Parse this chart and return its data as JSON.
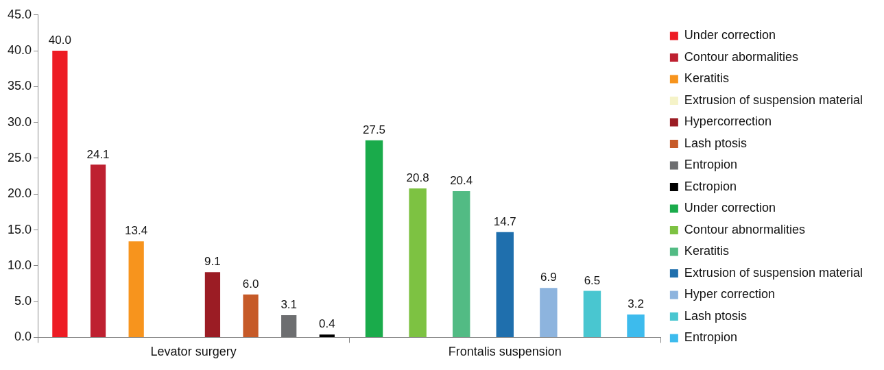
{
  "chart_data": {
    "type": "bar",
    "categories": [
      "Levator surgery",
      "Frontalis suspension"
    ],
    "series": [
      {
        "name": "Under correction",
        "color": "#ed1c24",
        "values": [
          40.0,
          null
        ],
        "value_labels": [
          "40.0",
          null
        ]
      },
      {
        "name": "Contour abormalities",
        "color": "#be2030",
        "values": [
          24.1,
          null
        ],
        "value_labels": [
          "24.1",
          null
        ]
      },
      {
        "name": "Keratitis",
        "color": "#f7941d",
        "values": [
          13.4,
          null
        ],
        "value_labels": [
          "13.4",
          null
        ]
      },
      {
        "name": "Extrusion of suspension material",
        "color": "#f5f3c8",
        "values": [
          0,
          null
        ],
        "value_labels": [
          null,
          null
        ]
      },
      {
        "name": "Hypercorrection",
        "color": "#9b1c24",
        "values": [
          9.1,
          null
        ],
        "value_labels": [
          "9.1",
          null
        ]
      },
      {
        "name": "Lash ptosis",
        "color": "#c65a28",
        "values": [
          6.0,
          null
        ],
        "value_labels": [
          "6.0",
          null
        ]
      },
      {
        "name": "Entropion",
        "color": "#6d6e70",
        "values": [
          3.1,
          null
        ],
        "value_labels": [
          "3.1",
          null
        ]
      },
      {
        "name": "Ectropion",
        "color": "#000000",
        "values": [
          0.4,
          null
        ],
        "value_labels": [
          "0.4",
          null
        ]
      },
      {
        "name": "Under correction",
        "color": "#1aab4b",
        "values": [
          null,
          27.5
        ],
        "value_labels": [
          null,
          "27.5"
        ]
      },
      {
        "name": "Contour abnormalities",
        "color": "#7dc242",
        "values": [
          null,
          20.8
        ],
        "value_labels": [
          null,
          "20.8"
        ]
      },
      {
        "name": "Keratitis",
        "color": "#52bb84",
        "values": [
          null,
          20.4
        ],
        "value_labels": [
          null,
          "20.4"
        ]
      },
      {
        "name": "Extrusion of suspension material",
        "color": "#1f6fad",
        "values": [
          null,
          14.7
        ],
        "value_labels": [
          null,
          "14.7"
        ]
      },
      {
        "name": "Hyper correction",
        "color": "#8db4de",
        "values": [
          null,
          6.9
        ],
        "value_labels": [
          null,
          "6.9"
        ]
      },
      {
        "name": "Lash ptosis",
        "color": "#49c6d0",
        "values": [
          null,
          6.5
        ],
        "value_labels": [
          null,
          "6.5"
        ]
      },
      {
        "name": "Entropion",
        "color": "#3dbbed",
        "values": [
          null,
          3.2
        ],
        "value_labels": [
          null,
          "3.2"
        ]
      }
    ],
    "ylim": [
      0,
      45
    ],
    "yticks": [
      {
        "value": 0,
        "label": "0.0"
      },
      {
        "value": 5,
        "label": "5.0"
      },
      {
        "value": 10,
        "label": "10.0"
      },
      {
        "value": 15,
        "label": "15.0"
      },
      {
        "value": 20,
        "label": "20.0"
      },
      {
        "value": 25,
        "label": "25.0"
      },
      {
        "value": 30,
        "label": "30.0"
      },
      {
        "value": 35,
        "label": "35.0"
      },
      {
        "value": 40,
        "label": "40.0"
      },
      {
        "value": 45,
        "label": "45.0"
      }
    ],
    "grid": false,
    "legend": "right"
  }
}
